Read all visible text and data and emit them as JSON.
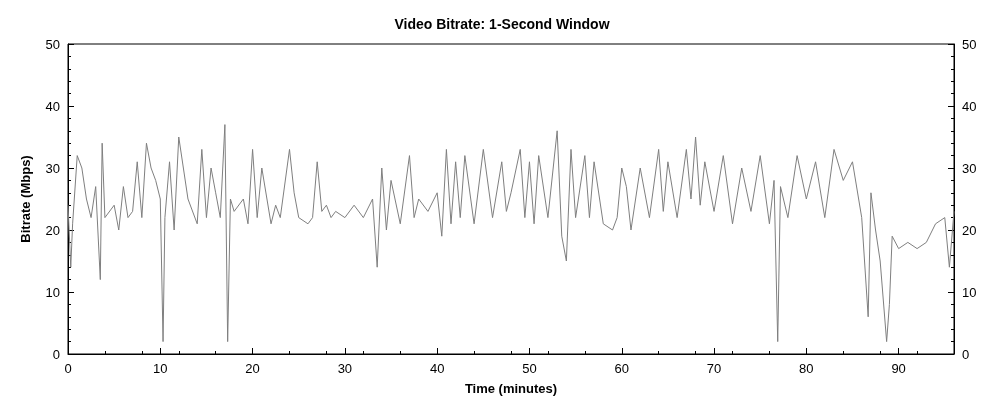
{
  "chart_data": {
    "type": "line",
    "title": "Video Bitrate: 1-Second Window",
    "xlabel": "Time (minutes)",
    "ylabel": "Bitrate (Mbps)",
    "x": [
      0,
      0.3,
      0.5,
      1,
      1.5,
      2,
      2.5,
      3,
      3.5,
      3.7,
      4,
      5,
      5.5,
      6,
      6.5,
      7,
      7.5,
      8,
      8.5,
      9,
      9.5,
      10,
      10.3,
      10.5,
      11,
      11.5,
      12,
      12.5,
      13,
      14,
      14.5,
      15,
      15.5,
      16,
      16.5,
      17,
      17.3,
      17.6,
      18,
      19,
      19.5,
      20,
      20.5,
      21,
      22,
      22.5,
      23,
      24,
      24.5,
      25,
      26,
      26.5,
      27,
      27.5,
      28,
      28.5,
      29,
      30,
      31,
      32,
      33,
      33.5,
      34,
      34.5,
      35,
      36,
      37,
      37.5,
      38,
      39,
      40,
      40.5,
      41,
      41.5,
      42,
      42.5,
      43,
      44,
      45,
      46,
      47,
      47.5,
      48,
      49,
      49.5,
      50,
      50.5,
      51,
      52,
      53,
      53.5,
      54,
      54.5,
      55,
      56,
      56.5,
      57,
      58,
      59,
      59.5,
      60,
      60.5,
      61,
      62,
      63,
      64,
      64.5,
      65,
      66,
      67,
      67.5,
      68,
      68.5,
      69,
      70,
      71,
      72,
      73,
      74,
      75,
      76,
      76.5,
      76.9,
      77.2,
      78,
      79,
      80,
      81,
      82,
      83,
      84,
      85,
      86,
      86.7,
      87,
      87.5,
      88,
      88.7,
      89,
      89.3,
      90,
      91,
      92,
      93,
      94,
      95,
      95.5,
      96
    ],
    "series": [
      {
        "color": "#7f7f7f",
        "values": [
          24,
          14,
          21,
          32,
          30,
          25,
          22,
          27,
          12,
          34,
          22,
          24,
          20,
          27,
          22,
          23,
          31,
          22,
          34,
          30,
          28,
          25,
          2,
          22,
          31,
          20,
          35,
          30,
          25,
          21,
          33,
          22,
          30,
          26,
          22,
          37,
          2,
          25,
          23,
          25,
          21,
          33,
          22,
          30,
          21,
          24,
          22,
          33,
          26,
          22,
          21,
          22,
          31,
          23,
          24,
          22,
          23,
          22,
          24,
          22,
          25,
          14,
          30,
          20,
          28,
          21,
          32,
          22,
          25,
          23,
          26,
          19,
          33,
          21,
          31,
          22,
          32,
          21,
          33,
          22,
          31,
          23,
          26,
          33,
          22,
          31,
          21,
          32,
          22,
          36,
          19,
          15,
          33,
          22,
          32,
          22,
          31,
          21,
          20,
          22,
          30,
          27,
          20,
          30,
          22,
          33,
          23,
          31,
          22,
          33,
          25,
          35,
          24,
          31,
          23,
          32,
          21,
          30,
          23,
          32,
          21,
          28,
          2,
          27,
          22,
          32,
          25,
          31,
          22,
          33,
          28,
          31,
          22,
          6,
          26,
          20,
          15,
          2,
          8,
          19,
          17,
          18,
          17,
          18,
          21,
          22,
          14,
          23
        ]
      }
    ],
    "xlim": [
      0,
      96
    ],
    "xticks": [
      0,
      10,
      20,
      30,
      40,
      50,
      60,
      70,
      80,
      90
    ],
    "ylim": [
      0,
      50
    ],
    "yticks": [
      0,
      10,
      20,
      30,
      40,
      50
    ],
    "y2lim": [
      0,
      50
    ],
    "y2ticks": [
      0,
      10,
      20,
      30,
      40,
      50
    ],
    "grid": false,
    "marker": "none",
    "line_style": "solid"
  }
}
